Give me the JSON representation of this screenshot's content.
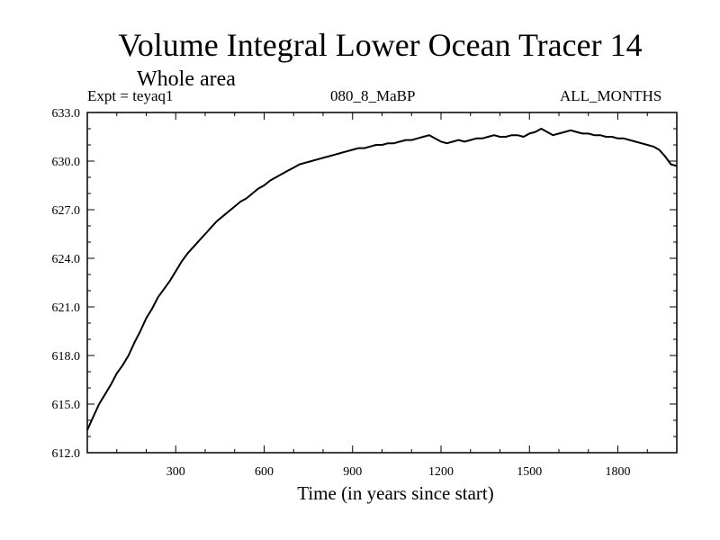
{
  "chart_data": {
    "type": "line",
    "title": "Volume Integral Lower Ocean Tracer 14",
    "subtitle": "Whole area",
    "experiment_label": "Expt = teyaq1",
    "period_label": "080_8_MaBP",
    "months_label": "ALL_MONTHS",
    "xlabel": "Time (in years since start)",
    "ylabel": "",
    "xlim": [
      0,
      2000
    ],
    "ylim": [
      612.0,
      633.0
    ],
    "x_ticks": [
      300,
      600,
      900,
      1200,
      1500,
      1800
    ],
    "x_tick_labels": [
      "300",
      "600",
      "900",
      "1200",
      "1500",
      "1800"
    ],
    "y_ticks": [
      612.0,
      615.0,
      618.0,
      621.0,
      624.0,
      627.0,
      630.0,
      633.0
    ],
    "y_tick_labels": [
      "612.0",
      "615.0",
      "618.0",
      "621.0",
      "624.0",
      "627.0",
      "630.0",
      "633.0"
    ],
    "grid": false,
    "legend": "none",
    "series": [
      {
        "name": "Volume Integral Lower Ocean Tracer 14",
        "color": "#000000",
        "x": [
          0,
          20,
          40,
          60,
          80,
          100,
          120,
          140,
          160,
          180,
          200,
          220,
          240,
          260,
          280,
          300,
          320,
          340,
          360,
          380,
          400,
          420,
          440,
          460,
          480,
          500,
          520,
          540,
          560,
          580,
          600,
          620,
          640,
          660,
          680,
          700,
          720,
          740,
          760,
          780,
          800,
          820,
          840,
          860,
          880,
          900,
          920,
          940,
          960,
          980,
          1000,
          1020,
          1040,
          1060,
          1080,
          1100,
          1120,
          1140,
          1160,
          1180,
          1200,
          1220,
          1240,
          1260,
          1280,
          1300,
          1320,
          1340,
          1360,
          1380,
          1400,
          1420,
          1440,
          1460,
          1480,
          1500,
          1520,
          1540,
          1560,
          1580,
          1600,
          1620,
          1640,
          1660,
          1680,
          1700,
          1720,
          1740,
          1760,
          1780,
          1800,
          1820,
          1840,
          1860,
          1880,
          1900,
          1920,
          1940,
          1960,
          1980,
          2000
        ],
        "values": [
          613.4,
          614.2,
          615.0,
          615.6,
          616.2,
          616.9,
          617.4,
          618.0,
          618.8,
          619.5,
          620.3,
          620.9,
          621.6,
          622.1,
          622.6,
          623.2,
          623.8,
          624.3,
          624.7,
          625.1,
          625.5,
          625.9,
          626.3,
          626.6,
          626.9,
          627.2,
          627.5,
          627.7,
          628.0,
          628.3,
          628.5,
          628.8,
          629.0,
          629.2,
          629.4,
          629.6,
          629.8,
          629.9,
          630.0,
          630.1,
          630.2,
          630.3,
          630.4,
          630.5,
          630.6,
          630.7,
          630.8,
          630.8,
          630.9,
          631.0,
          631.0,
          631.1,
          631.1,
          631.2,
          631.3,
          631.3,
          631.4,
          631.5,
          631.6,
          631.4,
          631.2,
          631.1,
          631.2,
          631.3,
          631.2,
          631.3,
          631.4,
          631.4,
          631.5,
          631.6,
          631.5,
          631.5,
          631.6,
          631.6,
          631.5,
          631.7,
          631.8,
          632.0,
          631.8,
          631.6,
          631.7,
          631.8,
          631.9,
          631.8,
          631.7,
          631.7,
          631.6,
          631.6,
          631.5,
          631.5,
          631.4,
          631.4,
          631.3,
          631.2,
          631.1,
          631.0,
          630.9,
          630.7,
          630.3,
          629.8,
          629.7
        ]
      }
    ]
  }
}
